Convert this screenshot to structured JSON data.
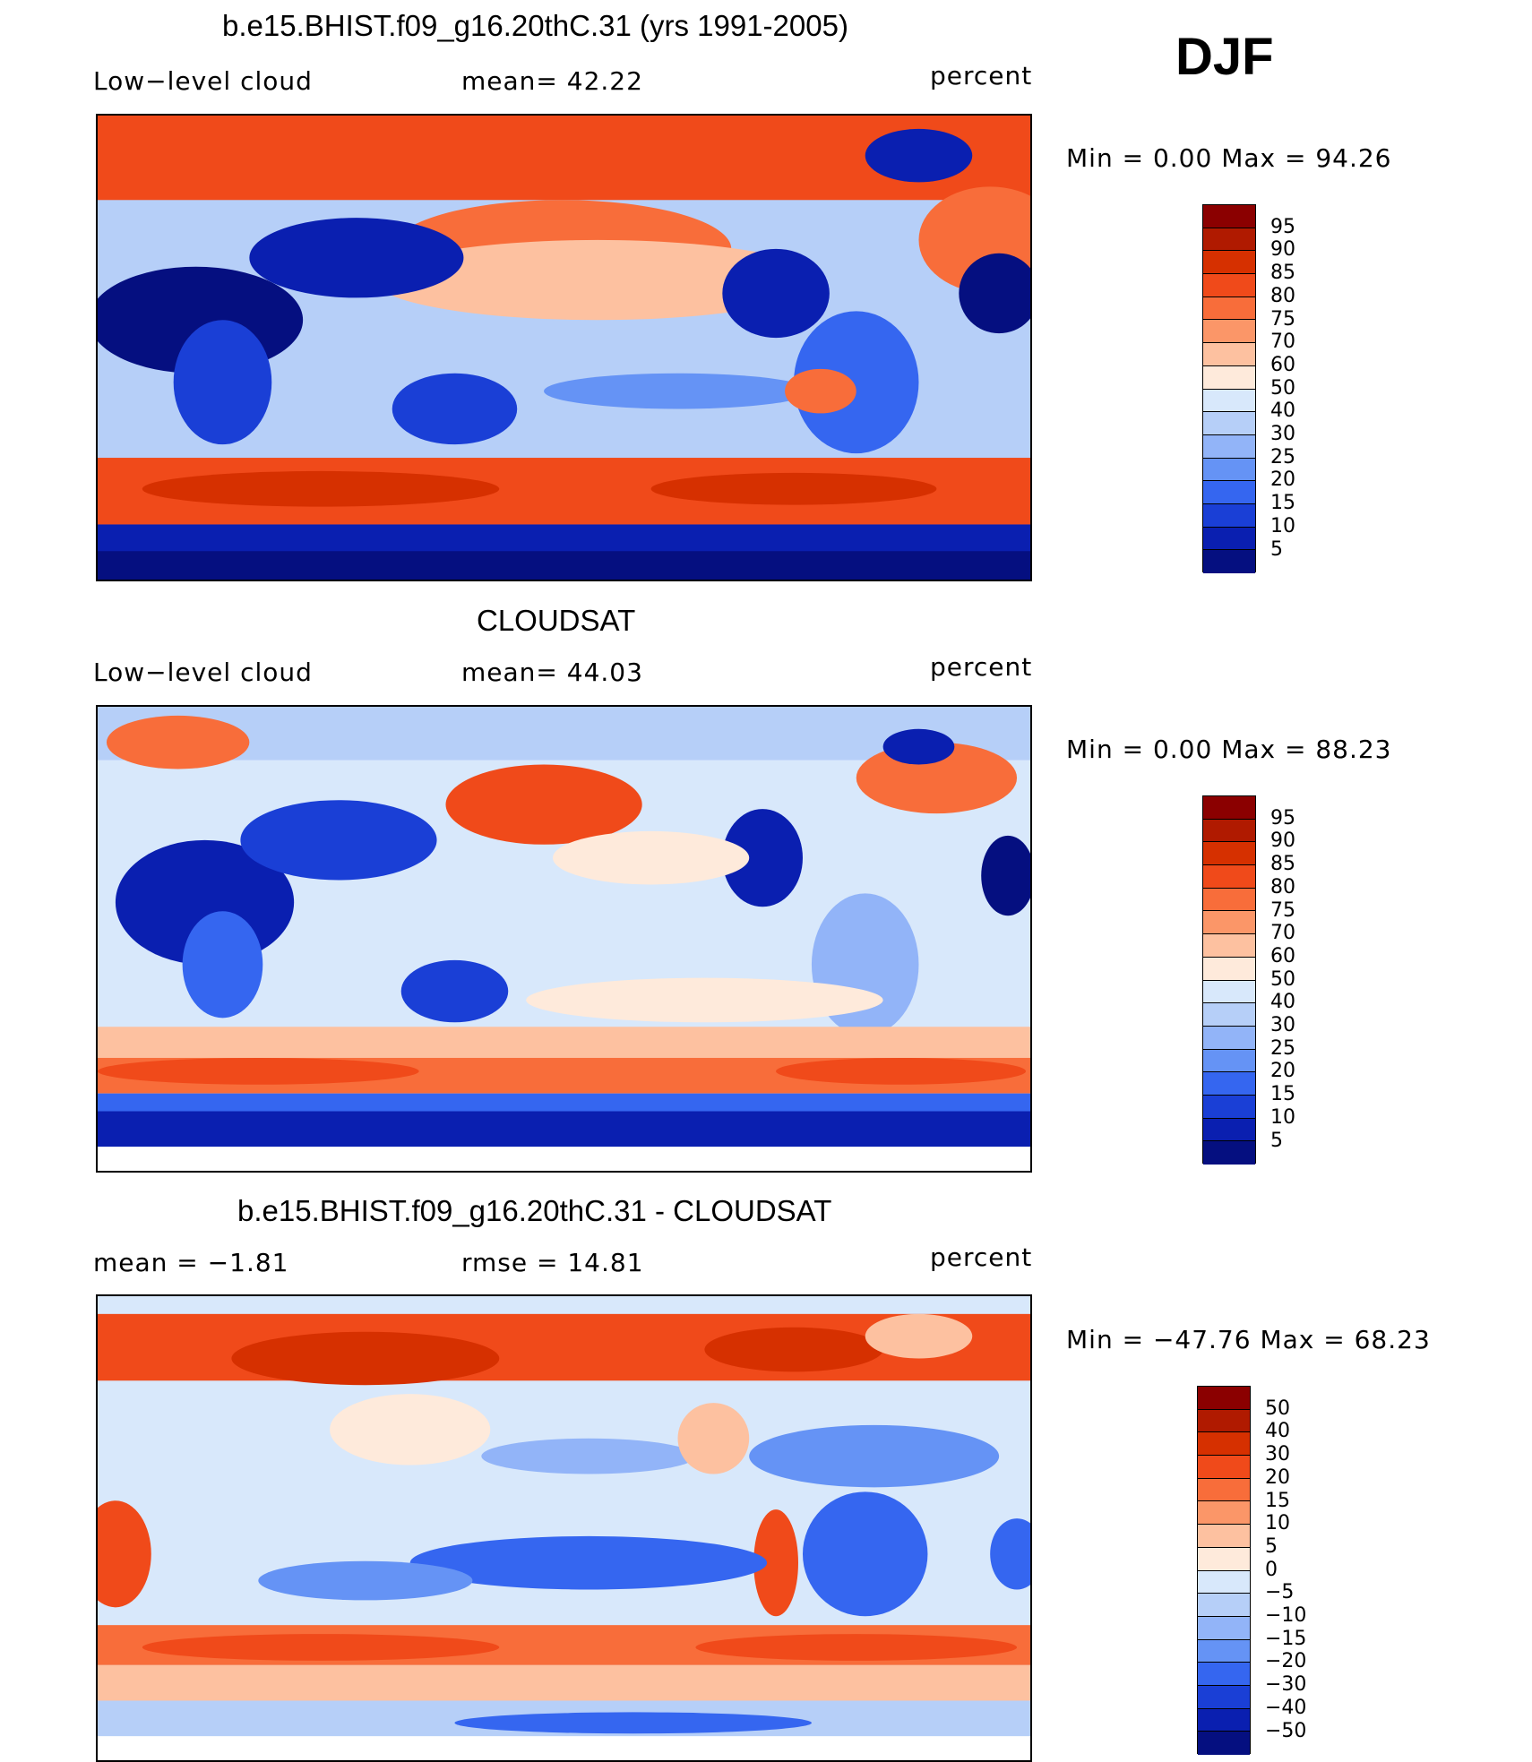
{
  "season": "DJF",
  "panels": [
    {
      "title": "b.e15.BHIST.f09_g16.20thC.31 (yrs 1991-2005)",
      "left_label": "Low−level cloud",
      "mid_label": "mean=   42.22",
      "units": "percent",
      "minmax": "Min =    0.00 Max =   94.26"
    },
    {
      "title": "CLOUDSAT",
      "left_label": "Low−level cloud",
      "mid_label": "mean=   44.03",
      "units": "percent",
      "minmax": "Min =    0.00 Max =   88.23"
    },
    {
      "title": "b.e15.BHIST.f09_g16.20thC.31 - CLOUDSAT",
      "left_label": "mean =   −1.81",
      "mid_label": "rmse =   14.81",
      "units": "percent",
      "minmax": "Min = −47.76 Max =   68.23"
    }
  ],
  "colorbar_abs": {
    "labels": [
      "95",
      "90",
      "85",
      "80",
      "75",
      "70",
      "60",
      "50",
      "40",
      "30",
      "25",
      "20",
      "15",
      "10",
      "5"
    ],
    "colors": [
      "#8b0000",
      "#b01a00",
      "#d63000",
      "#f04a1a",
      "#f86d3a",
      "#fb9668",
      "#fdc1a0",
      "#feeadb",
      "#d8e8fb",
      "#b6cff8",
      "#92b4f8",
      "#6593f5",
      "#3566f0",
      "#1a3fd6",
      "#0a1fb0",
      "#050f80"
    ]
  },
  "colorbar_diff": {
    "labels": [
      "50",
      "40",
      "30",
      "20",
      "15",
      "10",
      "5",
      "0",
      "−5",
      "−10",
      "−15",
      "−20",
      "−30",
      "−40",
      "−50"
    ],
    "colors": [
      "#8b0000",
      "#b01a00",
      "#d63000",
      "#f04a1a",
      "#f86d3a",
      "#fb9668",
      "#fdc1a0",
      "#feeadb",
      "#d8e8fb",
      "#b6cff8",
      "#92b4f8",
      "#6593f5",
      "#3566f0",
      "#1a3fd6",
      "#0a1fb0",
      "#050f80"
    ]
  }
}
